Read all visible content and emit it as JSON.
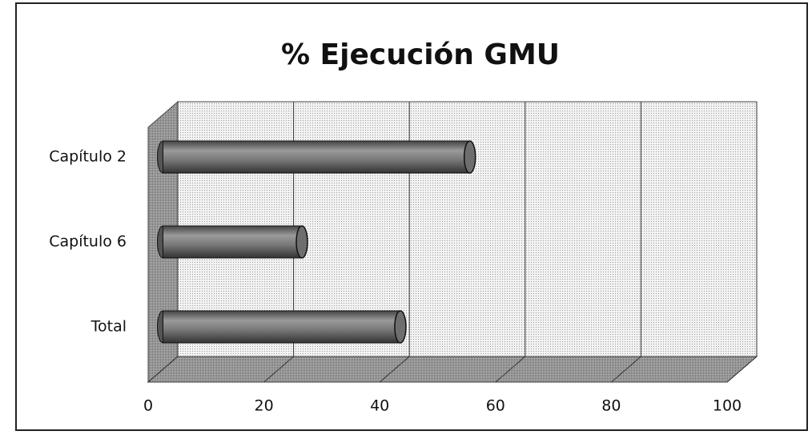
{
  "chart_data": {
    "type": "bar",
    "orientation": "horizontal",
    "title": "% Ejecución GMU",
    "categories": [
      "Capítulo 2",
      "Capítulo 6",
      "Total"
    ],
    "values": [
      53,
      24,
      41
    ],
    "color": "#6e6e6e",
    "xlim": [
      0,
      100
    ],
    "xticks": [
      0,
      20,
      40,
      60,
      80,
      100
    ],
    "grid": true
  }
}
